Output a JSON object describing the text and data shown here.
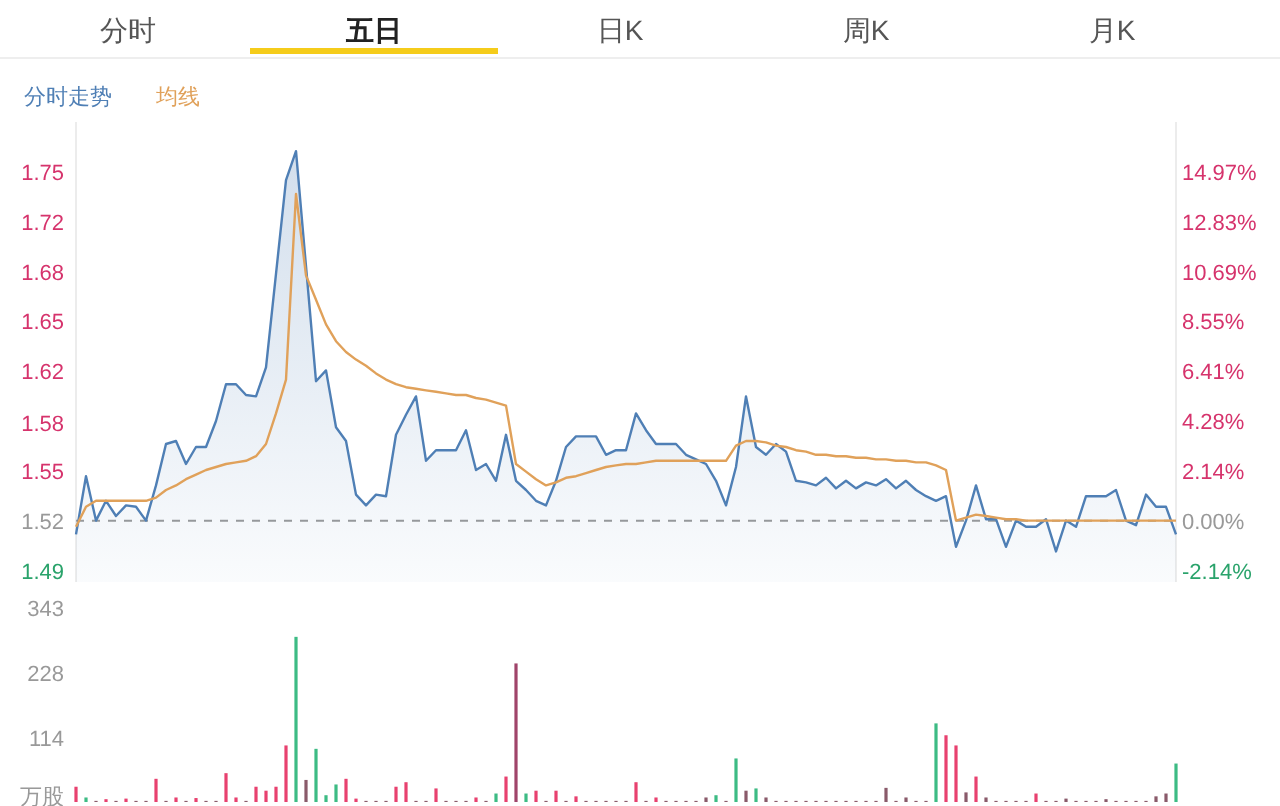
{
  "chart_data": [
    {
      "type": "area",
      "annotations": [
        "分时",
        "五日",
        "日K",
        "周K",
        "月K"
      ],
      "categories": [
        null,
        null,
        null,
        null,
        null,
        null,
        null,
        null,
        null,
        null,
        null,
        null,
        null,
        null,
        null,
        null,
        null,
        null,
        null,
        null,
        null,
        null,
        null,
        null,
        null,
        null,
        null,
        null,
        null,
        null,
        null,
        null,
        null,
        null,
        null,
        null,
        null,
        null,
        null,
        null,
        null,
        null,
        null,
        null,
        null,
        null,
        null,
        null,
        null,
        null,
        null,
        null,
        null,
        null,
        null,
        null,
        null,
        null,
        null,
        null,
        null,
        null,
        null,
        null,
        null,
        null,
        null,
        null,
        null,
        null,
        null,
        null,
        null,
        null,
        null,
        null,
        null,
        null,
        null,
        null,
        null,
        null,
        null,
        null,
        null,
        null,
        null,
        null,
        null,
        null,
        null,
        null,
        null,
        null,
        null,
        null,
        null,
        null,
        null,
        null,
        null,
        null,
        null,
        null,
        null,
        null,
        null,
        null,
        null,
        null,
        null
      ],
      "ylim": [
        1.48,
        1.78
      ],
      "y2lim": [
        -2.632,
        17.105
      ],
      "yticks": [
        {
          "value": 1.4875,
          "label": "1.49"
        },
        1.52,
        {
          "value": 1.5525,
          "label": "1.55"
        },
        {
          "value": 1.584,
          "label": "1.58"
        },
        {
          "value": 1.6174,
          "label": "1.62"
        },
        {
          "value": 1.65,
          "label": "1.65"
        },
        {
          "value": 1.6825,
          "label": "1.68"
        },
        {
          "value": 1.715,
          "label": "1.72"
        },
        {
          "value": 1.7475,
          "label": "1.75"
        }
      ],
      "y2ticks": [
        {
          "value": -2.14,
          "label": "-2.14%"
        },
        {
          "value": 0,
          "label": "0.00%"
        },
        {
          "value": 2.14,
          "label": "2.14%"
        },
        {
          "value": 4.28,
          "label": "4.28%"
        },
        {
          "value": 6.41,
          "label": "6.41%"
        },
        {
          "value": 8.55,
          "label": "8.55%"
        },
        {
          "value": 10.69,
          "label": "10.69%"
        },
        {
          "value": 12.83,
          "label": "12.83%"
        },
        {
          "value": 14.97,
          "label": "14.97%"
        }
      ],
      "ref_lines": [
        {
          "axis": "y",
          "value": 1.52,
          "line_style": "dashed",
          "color": "#9a9a9a"
        }
      ],
      "series": [
        {
          "name": "分时走势",
          "color": "#4f7fb5",
          "values": [
            1.511,
            1.549,
            1.52,
            1.533,
            1.523,
            1.53,
            1.529,
            1.52,
            1.543,
            1.57,
            1.572,
            1.557,
            1.568,
            1.568,
            1.585,
            1.609,
            1.609,
            1.602,
            1.601,
            1.62,
            1.681,
            1.742,
            1.761,
            1.686,
            1.611,
            1.618,
            1.581,
            1.572,
            1.537,
            1.53,
            1.537,
            1.536,
            1.576,
            1.589,
            1.601,
            1.559,
            1.566,
            1.566,
            1.566,
            1.579,
            1.553,
            1.557,
            1.546,
            1.576,
            1.546,
            1.54,
            1.533,
            1.53,
            1.546,
            1.568,
            1.575,
            1.575,
            1.575,
            1.563,
            1.566,
            1.566,
            1.59,
            1.579,
            1.57,
            1.57,
            1.57,
            1.563,
            1.56,
            1.557,
            1.546,
            1.53,
            1.555,
            1.601,
            1.568,
            1.563,
            1.57,
            1.565,
            1.546,
            1.545,
            1.543,
            1.548,
            1.541,
            1.546,
            1.541,
            1.545,
            1.543,
            1.547,
            1.541,
            1.546,
            1.54,
            1.536,
            1.533,
            1.536,
            1.503,
            1.52,
            1.543,
            1.521,
            1.521,
            1.503,
            1.52,
            1.516,
            1.516,
            1.521,
            1.5,
            1.52,
            1.516,
            1.536,
            1.536,
            1.536,
            1.54,
            1.52,
            1.517,
            1.537,
            1.529,
            1.529,
            1.511
          ]
        },
        {
          "name": "均线",
          "type": "line",
          "color": "#e0a15a",
          "values": [
            1.516,
            1.529,
            1.533,
            1.533,
            1.533,
            1.533,
            1.533,
            1.533,
            1.535,
            1.54,
            1.543,
            1.547,
            1.55,
            1.553,
            1.555,
            1.557,
            1.558,
            1.559,
            1.562,
            1.57,
            1.59,
            1.612,
            1.733,
            1.68,
            1.664,
            1.648,
            1.637,
            1.63,
            1.625,
            1.621,
            1.616,
            1.612,
            1.609,
            1.607,
            1.606,
            1.605,
            1.604,
            1.603,
            1.602,
            1.602,
            1.6,
            1.599,
            1.597,
            1.595,
            1.557,
            1.552,
            1.547,
            1.543,
            1.545,
            1.548,
            1.549,
            1.551,
            1.553,
            1.555,
            1.556,
            1.557,
            1.557,
            1.558,
            1.559,
            1.559,
            1.559,
            1.559,
            1.559,
            1.559,
            1.559,
            1.559,
            1.569,
            1.572,
            1.572,
            1.571,
            1.569,
            1.568,
            1.566,
            1.565,
            1.563,
            1.563,
            1.562,
            1.562,
            1.561,
            1.561,
            1.56,
            1.56,
            1.559,
            1.559,
            1.558,
            1.558,
            1.556,
            1.553,
            1.52,
            1.522,
            1.524,
            1.523,
            1.522,
            1.521,
            1.521,
            1.52,
            1.52,
            1.52,
            1.52,
            1.52,
            1.52,
            1.52,
            1.52,
            1.52,
            1.52,
            1.52,
            1.52,
            1.52,
            1.52,
            1.52,
            1.52
          ]
        }
      ]
    },
    {
      "type": "bar",
      "ylim": [
        0,
        343
      ],
      "yticks": [
        {
          "value": 0,
          "label": "万股"
        },
        114,
        228,
        343
      ],
      "categories": [
        null,
        null,
        null,
        null,
        null,
        null,
        null,
        null,
        null,
        null,
        null,
        null,
        null,
        null,
        null,
        null,
        null,
        null,
        null,
        null,
        null,
        null,
        null,
        null,
        null,
        null,
        null,
        null,
        null,
        null,
        null,
        null,
        null,
        null,
        null,
        null,
        null,
        null,
        null,
        null,
        null,
        null,
        null,
        null,
        null,
        null,
        null,
        null,
        null,
        null,
        null,
        null,
        null,
        null,
        null,
        null,
        null,
        null,
        null,
        null,
        null,
        null,
        null,
        null,
        null,
        null,
        null,
        null,
        null,
        null,
        null,
        null,
        null,
        null,
        null,
        null,
        null,
        null,
        null,
        null,
        null,
        null,
        null,
        null,
        null,
        null,
        null,
        null,
        null,
        null,
        null,
        null,
        null,
        null,
        null,
        null,
        null,
        null,
        null,
        null,
        null,
        null,
        null,
        null,
        null,
        null,
        null,
        null,
        null,
        null,
        null
      ],
      "values": [
        27,
        8,
        2,
        5,
        2,
        6,
        2,
        2,
        41,
        2,
        8,
        2,
        7,
        2,
        2,
        51,
        8,
        2,
        27,
        20,
        27,
        100,
        292,
        39,
        94,
        12,
        31,
        41,
        6,
        2,
        2,
        2,
        27,
        35,
        2,
        2,
        24,
        2,
        2,
        2,
        8,
        2,
        15,
        45,
        245,
        15,
        20,
        2,
        20,
        2,
        10,
        2,
        2,
        2,
        2,
        2,
        35,
        2,
        8,
        2,
        2,
        2,
        2,
        8,
        12,
        2,
        77,
        20,
        24,
        8,
        2,
        2,
        2,
        2,
        2,
        2,
        2,
        2,
        2,
        2,
        2,
        25,
        2,
        8,
        2,
        2,
        139,
        118,
        100,
        17,
        45,
        8,
        2,
        2,
        2,
        2,
        15,
        2,
        2,
        6,
        2,
        2,
        2,
        5,
        2,
        2,
        2,
        2,
        10,
        15,
        68
      ],
      "colors": [
        "#e8416f",
        "#3dbb84",
        "#8a5a6a",
        "#e8416f",
        "#8a5a6a",
        "#e8416f",
        "#8a5a6a",
        "#8a5a6a",
        "#e8416f",
        "#8a5a6a",
        "#e8416f",
        "#8a5a6a",
        "#e8416f",
        "#8a5a6a",
        "#8a5a6a",
        "#e8416f",
        "#e8416f",
        "#8a5a6a",
        "#e8416f",
        "#e8416f",
        "#e8416f",
        "#e8416f",
        "#3dbb84",
        "#8a5a6a",
        "#3dbb84",
        "#3dbb84",
        "#3dbb84",
        "#e8416f",
        "#e8416f",
        "#8a5a6a",
        "#8a5a6a",
        "#8a5a6a",
        "#e8416f",
        "#e8416f",
        "#8a5a6a",
        "#8a5a6a",
        "#e8416f",
        "#8a5a6a",
        "#8a5a6a",
        "#8a5a6a",
        "#e8416f",
        "#8a5a6a",
        "#3dbb84",
        "#e8416f",
        "#a0446a",
        "#3dbb84",
        "#e8416f",
        "#8a5a6a",
        "#e8416f",
        "#8a5a6a",
        "#e8416f",
        "#8a5a6a",
        "#8a5a6a",
        "#8a5a6a",
        "#8a5a6a",
        "#8a5a6a",
        "#e8416f",
        "#8a5a6a",
        "#e8416f",
        "#8a5a6a",
        "#8a5a6a",
        "#8a5a6a",
        "#8a5a6a",
        "#8a5a6a",
        "#3dbb84",
        "#8a5a6a",
        "#3dbb84",
        "#8a5a6a",
        "#3dbb84",
        "#8a5a6a",
        "#8a5a6a",
        "#8a5a6a",
        "#8a5a6a",
        "#8a5a6a",
        "#8a5a6a",
        "#8a5a6a",
        "#8a5a6a",
        "#8a5a6a",
        "#8a5a6a",
        "#8a5a6a",
        "#8a5a6a",
        "#8a5a6a",
        "#8a5a6a",
        "#8a5a6a",
        "#8a5a6a",
        "#8a5a6a",
        "#3dbb84",
        "#e8416f",
        "#e8416f",
        "#8a5a6a",
        "#e8416f",
        "#8a5a6a",
        "#8a5a6a",
        "#8a5a6a",
        "#8a5a6a",
        "#8a5a6a",
        "#e8416f",
        "#8a5a6a",
        "#8a5a6a",
        "#8a5a6a",
        "#8a5a6a",
        "#8a5a6a",
        "#8a5a6a",
        "#8a5a6a",
        "#8a5a6a",
        "#8a5a6a",
        "#8a5a6a",
        "#8a5a6a",
        "#8a5a6a",
        "#8a5a6a",
        "#3dbb84"
      ]
    }
  ]
}
